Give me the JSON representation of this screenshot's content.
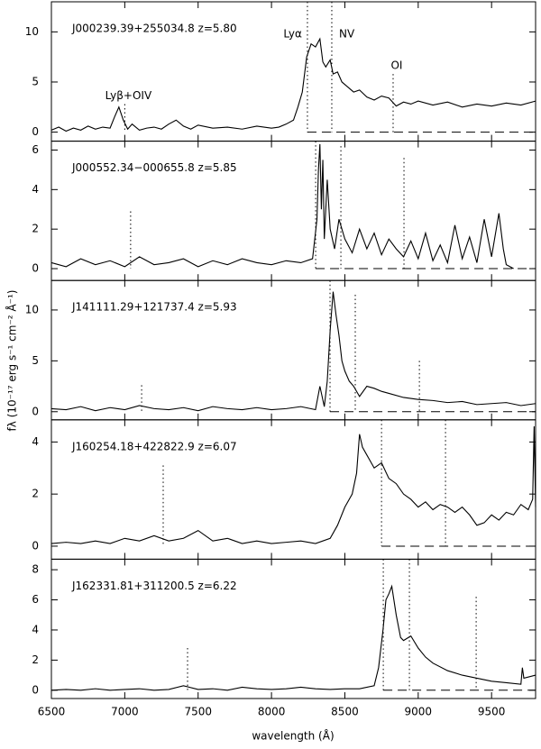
{
  "axis_labels": {
    "ylabel": "fλ (10⁻¹⁷ erg s⁻¹ cm⁻² Å⁻¹)",
    "xlabel": "wavelength (Å)"
  },
  "chart_data": [
    {
      "type": "line",
      "title": "J000239.39+255034.8  z=5.80",
      "color": "#000000",
      "x": [
        6500,
        6550,
        6600,
        6650,
        6700,
        6750,
        6800,
        6850,
        6900,
        6930,
        6960,
        6990,
        7020,
        7050,
        7100,
        7150,
        7200,
        7250,
        7300,
        7350,
        7400,
        7450,
        7500,
        7600,
        7700,
        7800,
        7900,
        8000,
        8050,
        8100,
        8150,
        8180,
        8210,
        8240,
        8270,
        8300,
        8330,
        8350,
        8370,
        8400,
        8420,
        8450,
        8480,
        8520,
        8560,
        8600,
        8650,
        8700,
        8750,
        8800,
        8850,
        8900,
        8950,
        9000,
        9100,
        9200,
        9300,
        9400,
        9500,
        9600,
        9700,
        9800
      ],
      "values": [
        0.2,
        0.5,
        0.1,
        0.4,
        0.2,
        0.6,
        0.3,
        0.5,
        0.4,
        1.5,
        2.5,
        1.2,
        0.3,
        0.8,
        0.2,
        0.4,
        0.5,
        0.3,
        0.8,
        1.2,
        0.6,
        0.3,
        0.7,
        0.4,
        0.5,
        0.3,
        0.6,
        0.4,
        0.5,
        0.8,
        1.2,
        2.5,
        4,
        7.5,
        8.8,
        8.5,
        9.3,
        7,
        6.5,
        7.2,
        5.8,
        6,
        5,
        4.5,
        4,
        4.2,
        3.5,
        3.2,
        3.6,
        3.4,
        2.6,
        3,
        2.8,
        3.1,
        2.7,
        3,
        2.5,
        2.8,
        2.6,
        2.9,
        2.7,
        3.1
      ],
      "markers": [
        {
          "x": 7000,
          "top": 2.8,
          "label": "Lyβ+OIV"
        },
        {
          "x": 8245,
          "top": 13,
          "label": "Lyα"
        },
        {
          "x": 8411,
          "top": 13,
          "label": "NV"
        },
        {
          "x": 8829,
          "top": 5.8,
          "label": "OI"
        }
      ],
      "xlim": [
        6500,
        9800
      ],
      "xticks": [
        6500,
        7000,
        7500,
        8000,
        8500,
        9000,
        9500
      ],
      "ylim": [
        -0.9,
        13
      ],
      "yticks": [
        0,
        5,
        10
      ]
    },
    {
      "type": "line",
      "title": "J000552.34−000655.8  z=5.85",
      "color": "#000000",
      "x": [
        6500,
        6600,
        6700,
        6800,
        6900,
        7000,
        7100,
        7200,
        7300,
        7400,
        7500,
        7600,
        7700,
        7800,
        7900,
        8000,
        8100,
        8200,
        8280,
        8310,
        8320,
        8330,
        8340,
        8350,
        8360,
        8380,
        8400,
        8430,
        8460,
        8500,
        8550,
        8600,
        8650,
        8700,
        8750,
        8800,
        8850,
        8900,
        8950,
        9000,
        9050,
        9100,
        9150,
        9200,
        9250,
        9300,
        9350,
        9400,
        9450,
        9500,
        9550,
        9580,
        9600,
        9650
      ],
      "values": [
        0.3,
        0.1,
        0.5,
        0.2,
        0.4,
        0.1,
        0.6,
        0.2,
        0.3,
        0.5,
        0.1,
        0.4,
        0.2,
        0.5,
        0.3,
        0.2,
        0.4,
        0.3,
        0.5,
        2.5,
        5,
        6.3,
        3,
        5.5,
        1.5,
        4.5,
        2,
        1,
        2.5,
        1.5,
        0.8,
        2,
        1,
        1.8,
        0.7,
        1.5,
        1,
        0.6,
        1.4,
        0.5,
        1.8,
        0.4,
        1.2,
        0.3,
        2.2,
        0.5,
        1.6,
        0.3,
        2.5,
        0.6,
        2.8,
        1,
        0.2,
        0
      ],
      "markers": [
        {
          "x": 7040,
          "top": 2.9
        },
        {
          "x": 8301,
          "top": 6.45
        },
        {
          "x": 8473,
          "top": 6.2
        },
        {
          "x": 8903,
          "top": 5.6
        }
      ],
      "xlim": [
        6500,
        9800
      ],
      "xticks": [
        6500,
        7000,
        7500,
        8000,
        8500,
        9000,
        9500
      ],
      "ylim": [
        -0.6,
        6.45
      ],
      "yticks": [
        0,
        2,
        4,
        6
      ]
    },
    {
      "type": "line",
      "title": "J141111.29+121737.4  z=5.93",
      "color": "#000000",
      "x": [
        6500,
        6600,
        6700,
        6800,
        6900,
        7000,
        7100,
        7200,
        7300,
        7400,
        7500,
        7600,
        7700,
        7800,
        7900,
        8000,
        8100,
        8200,
        8300,
        8330,
        8360,
        8380,
        8400,
        8420,
        8440,
        8460,
        8480,
        8500,
        8530,
        8560,
        8600,
        8650,
        8700,
        8750,
        8800,
        8900,
        9000,
        9100,
        9200,
        9300,
        9400,
        9500,
        9600,
        9700,
        9800
      ],
      "values": [
        0.3,
        0.2,
        0.5,
        0.1,
        0.4,
        0.2,
        0.6,
        0.3,
        0.2,
        0.4,
        0.1,
        0.5,
        0.3,
        0.2,
        0.4,
        0.2,
        0.3,
        0.5,
        0.2,
        2.5,
        0.5,
        3,
        8,
        11.8,
        9.5,
        7.5,
        5,
        4,
        3,
        2.5,
        1.5,
        2.5,
        2.3,
        2,
        1.8,
        1.4,
        1.2,
        1.1,
        0.9,
        1,
        0.7,
        0.8,
        0.9,
        0.6,
        0.8
      ],
      "markers": [
        {
          "x": 7115,
          "top": 2.6
        },
        {
          "x": 8399,
          "top": 12.9
        },
        {
          "x": 8571,
          "top": 11.5
        },
        {
          "x": 9008,
          "top": 5
        }
      ],
      "xlim": [
        6500,
        9800
      ],
      "xticks": [
        6500,
        7000,
        7500,
        8000,
        8500,
        9000,
        9500
      ],
      "ylim": [
        -0.8,
        12.9
      ],
      "yticks": [
        0,
        5,
        10
      ]
    },
    {
      "type": "line",
      "title": "J160254.18+422822.9  z=6.07",
      "color": "#000000",
      "x": [
        6500,
        6600,
        6700,
        6800,
        6900,
        7000,
        7100,
        7200,
        7300,
        7400,
        7500,
        7600,
        7700,
        7800,
        7900,
        8000,
        8100,
        8200,
        8300,
        8400,
        8450,
        8500,
        8550,
        8580,
        8600,
        8620,
        8650,
        8700,
        8750,
        8800,
        8850,
        8900,
        8950,
        9000,
        9050,
        9100,
        9150,
        9200,
        9250,
        9300,
        9350,
        9400,
        9450,
        9500,
        9550,
        9600,
        9650,
        9700,
        9750,
        9780,
        9790,
        9800
      ],
      "values": [
        0.1,
        0.15,
        0.1,
        0.2,
        0.1,
        0.3,
        0.2,
        0.4,
        0.2,
        0.3,
        0.6,
        0.2,
        0.3,
        0.1,
        0.2,
        0.1,
        0.15,
        0.2,
        0.1,
        0.3,
        0.8,
        1.5,
        2,
        2.8,
        4.3,
        3.8,
        3.5,
        3,
        3.2,
        2.6,
        2.4,
        2,
        1.8,
        1.5,
        1.7,
        1.4,
        1.6,
        1.5,
        1.3,
        1.5,
        1.2,
        0.8,
        0.9,
        1.2,
        1,
        1.3,
        1.2,
        1.6,
        1.4,
        1.8,
        4.6,
        1.5
      ],
      "markers": [
        {
          "x": 7262,
          "top": 3.1
        },
        {
          "x": 8750,
          "top": 4.85
        },
        {
          "x": 9186,
          "top": 4.85
        }
      ],
      "xlim": [
        6500,
        9800
      ],
      "xticks": [
        6500,
        7000,
        7500,
        8000,
        8500,
        9000,
        9500
      ],
      "ylim": [
        -0.5,
        4.85
      ],
      "yticks": [
        0,
        2,
        4
      ]
    },
    {
      "type": "line",
      "title": "J162331.81+311200.5  z=6.22",
      "color": "#000000",
      "x": [
        6500,
        6600,
        6700,
        6800,
        6900,
        7000,
        7100,
        7200,
        7300,
        7400,
        7500,
        7600,
        7700,
        7800,
        7900,
        8000,
        8100,
        8200,
        8300,
        8400,
        8500,
        8600,
        8700,
        8730,
        8760,
        8780,
        8800,
        8820,
        8850,
        8880,
        8900,
        8950,
        9000,
        9050,
        9100,
        9200,
        9300,
        9400,
        9500,
        9600,
        9700,
        9710,
        9720,
        9800
      ],
      "values": [
        0,
        0.05,
        0,
        0.1,
        0,
        0.05,
        0.1,
        0,
        0.05,
        0.3,
        0.05,
        0.1,
        0,
        0.2,
        0.1,
        0.05,
        0.1,
        0.2,
        0.1,
        0.05,
        0.1,
        0.1,
        0.3,
        1.5,
        4,
        6,
        6.4,
        6.9,
        5,
        3.5,
        3.3,
        3.6,
        2.8,
        2.2,
        1.8,
        1.3,
        1,
        0.8,
        0.6,
        0.5,
        0.4,
        1.5,
        0.8,
        1
      ],
      "markers": [
        {
          "x": 7428,
          "top": 2.8
        },
        {
          "x": 8762,
          "top": 8.7
        },
        {
          "x": 8940,
          "top": 8.7
        },
        {
          "x": 9395,
          "top": 6.2
        }
      ],
      "xlim": [
        6500,
        9800
      ],
      "xticks": [
        6500,
        7000,
        7500,
        8000,
        8500,
        9000,
        9500
      ],
      "ylim": [
        -0.55,
        8.7
      ],
      "yticks": [
        0,
        2,
        4,
        6,
        8
      ]
    }
  ]
}
